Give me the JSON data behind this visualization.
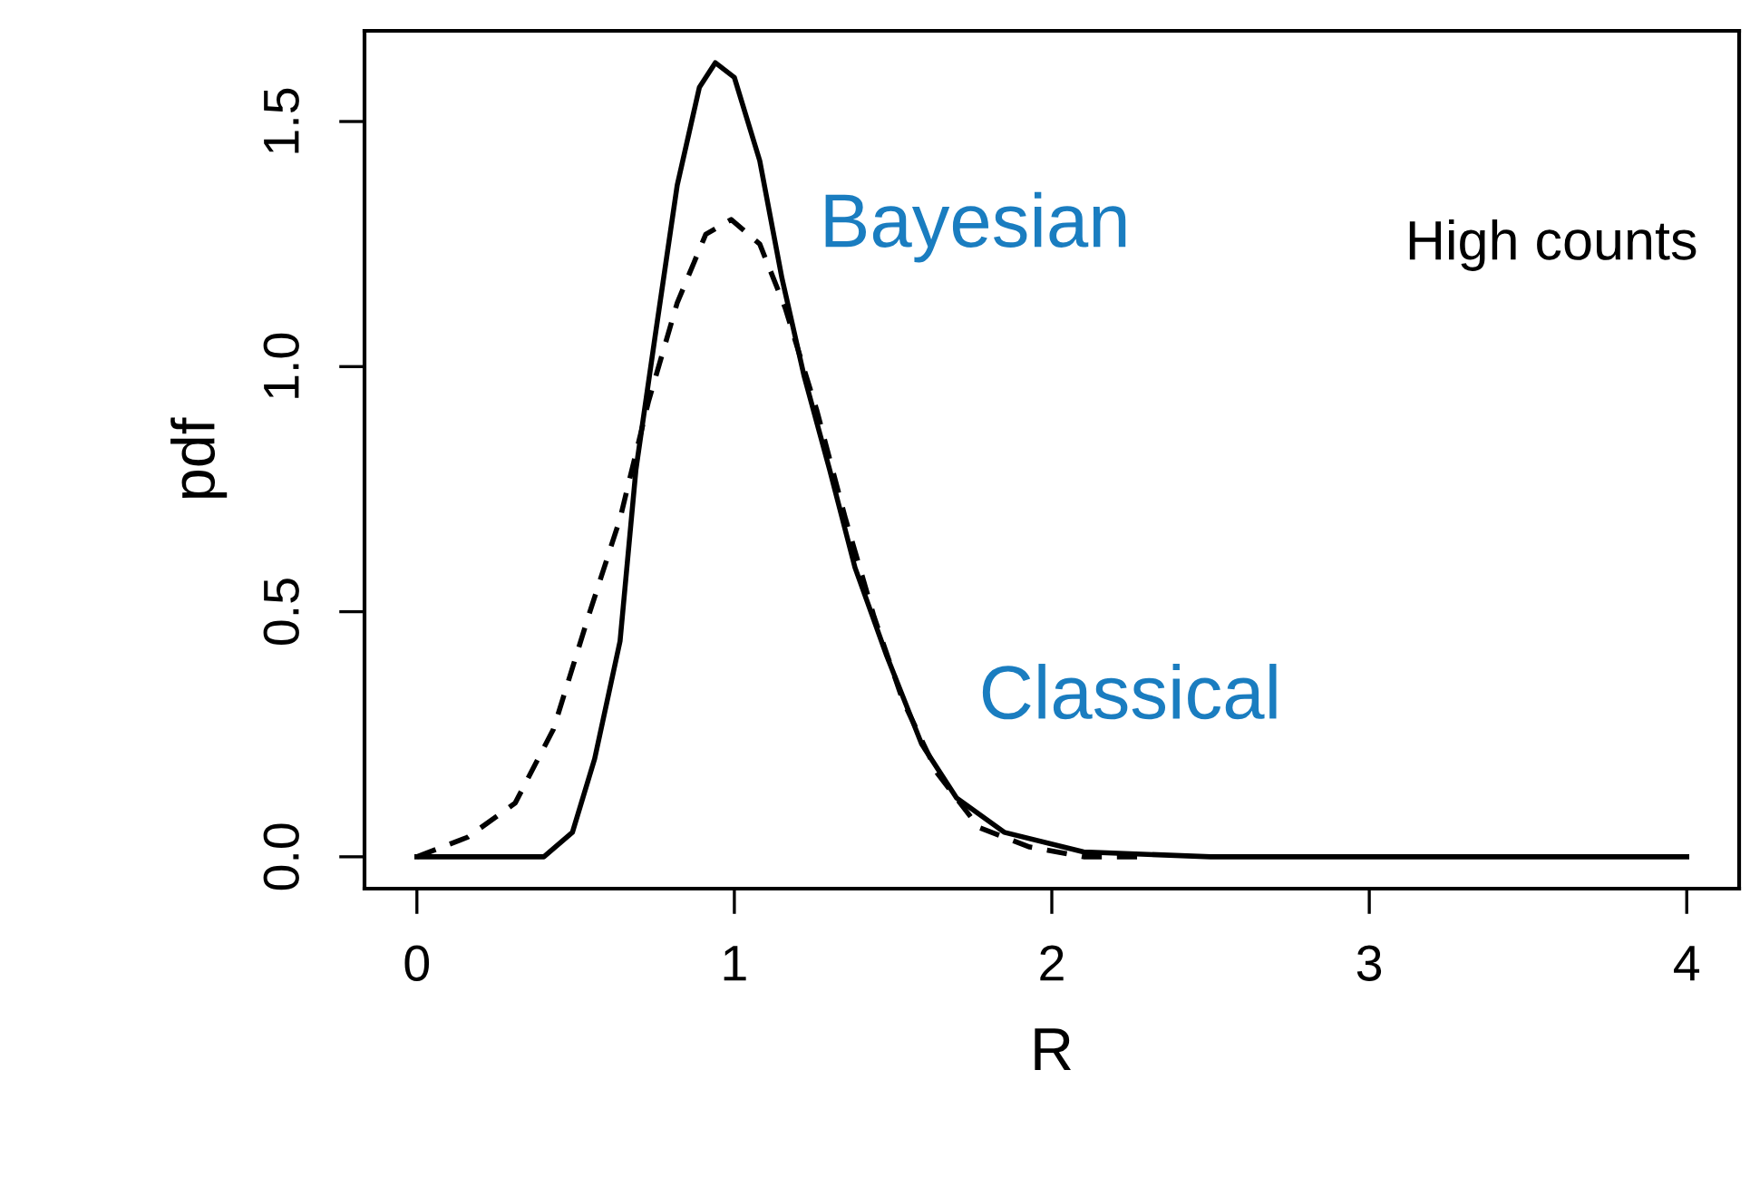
{
  "chart_data": {
    "type": "line",
    "xlabel": "R",
    "ylabel": "pdf",
    "xlim": [
      -0.165,
      4.165
    ],
    "xticks": [
      0,
      1,
      2,
      3,
      4
    ],
    "ylim": [
      -0.065,
      1.685
    ],
    "yticks": [
      {
        "value": 0,
        "label": "0.0"
      },
      0.5,
      {
        "value": 1,
        "label": "1.0"
      },
      1.5
    ],
    "series": [
      {
        "color": "#000000",
        "line_style": "solid",
        "x": [
          0,
          0.2,
          0.4,
          0.49,
          0.56,
          0.64,
          0.69,
          0.75,
          0.82,
          0.89,
          0.94,
          1.0,
          1.08,
          1.15,
          1.22,
          1.3,
          1.38,
          1.48,
          1.59,
          1.7,
          1.85,
          2.1,
          2.5,
          3.0,
          4.0
        ],
        "values": [
          0,
          0,
          0,
          0.05,
          0.2,
          0.44,
          0.79,
          1.06,
          1.37,
          1.57,
          1.62,
          1.59,
          1.42,
          1.18,
          0.98,
          0.79,
          0.59,
          0.41,
          0.23,
          0.12,
          0.05,
          0.01,
          0,
          0,
          0
        ]
      },
      {
        "color": "#000000",
        "line_style": "dashed",
        "x": [
          0,
          0.16,
          0.31,
          0.43,
          0.54,
          0.64,
          0.73,
          0.82,
          0.91,
          0.99,
          1.08,
          1.16,
          1.26,
          1.35,
          1.44,
          1.53,
          1.64,
          1.77,
          1.93,
          2.1,
          2.3
        ],
        "values": [
          0,
          0.04,
          0.11,
          0.26,
          0.49,
          0.69,
          0.93,
          1.13,
          1.27,
          1.3,
          1.25,
          1.12,
          0.91,
          0.69,
          0.49,
          0.32,
          0.17,
          0.06,
          0.02,
          0,
          0
        ]
      }
    ],
    "annotations": [
      "Bayesian",
      "Classical",
      "High counts"
    ]
  }
}
